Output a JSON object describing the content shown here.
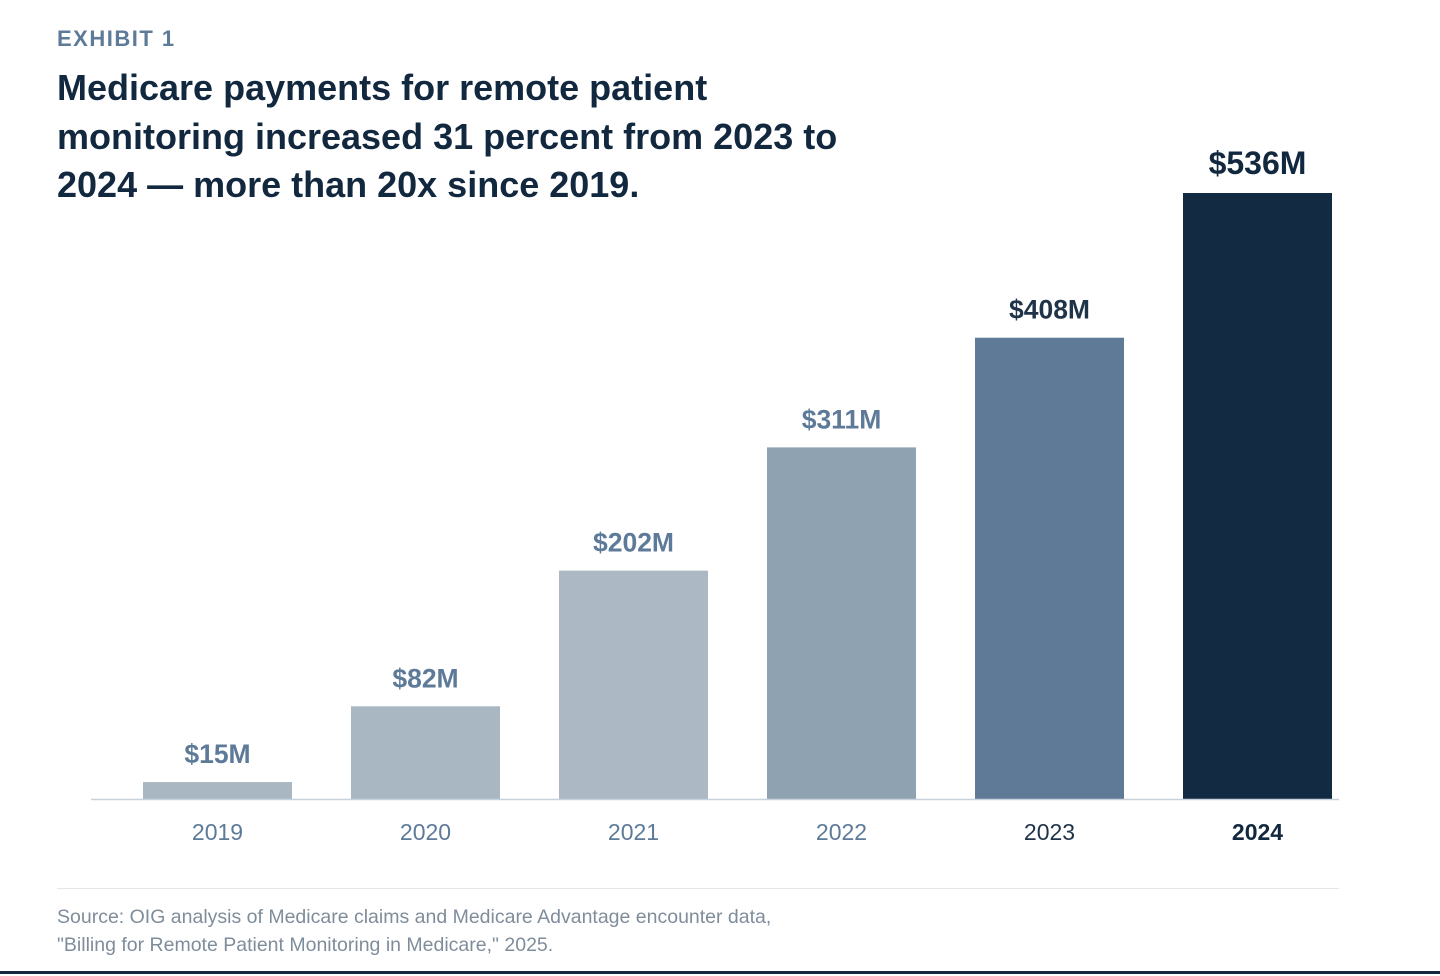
{
  "exhibit_label": "EXHIBIT 1",
  "headline": "Medicare payments for remote patient monitoring increased 31 percent from 2023 to 2024 — more than 20x since 2019.",
  "source": "Source: OIG analysis of Medicare claims and Medicare Advantage encounter data, \"Billing for Remote Patient Monitoring in Medicare,\" 2025.",
  "colors": {
    "headline": "#12283f",
    "eyebrow": "#5d7a98",
    "source_text": "#7f8d9b",
    "axis_line": "#c8d2dc"
  },
  "chart_data": {
    "type": "bar",
    "title": "Medicare payments for remote patient monitoring increased 31 percent from 2023 to 2024 — more than 20x since 2019.",
    "xlabel": "",
    "ylabel": "",
    "unit": "$M",
    "ylim": [
      0,
      536
    ],
    "grid": false,
    "legend": "none",
    "categories": [
      "2019",
      "2020",
      "2021",
      "2022",
      "2023",
      "2024"
    ],
    "values": [
      15,
      82,
      202,
      311,
      408,
      536
    ],
    "value_labels": [
      "$15M",
      "$82M",
      "$202M",
      "$311M",
      "$408M",
      "$536M"
    ],
    "bar_colors": [
      "#a9b7c3",
      "#a9b7c3",
      "#acb9c4",
      "#8fa2b1",
      "#5f7a97",
      "#122b42"
    ],
    "value_label_colors": [
      "#5d7a98",
      "#5d7a98",
      "#5d7a98",
      "#5d7a98",
      "#1f3349",
      "#12283f"
    ],
    "category_label_colors": [
      "#5d7a98",
      "#5d7a98",
      "#5d7a98",
      "#5d7a98",
      "#1f3349",
      "#12283f"
    ]
  }
}
